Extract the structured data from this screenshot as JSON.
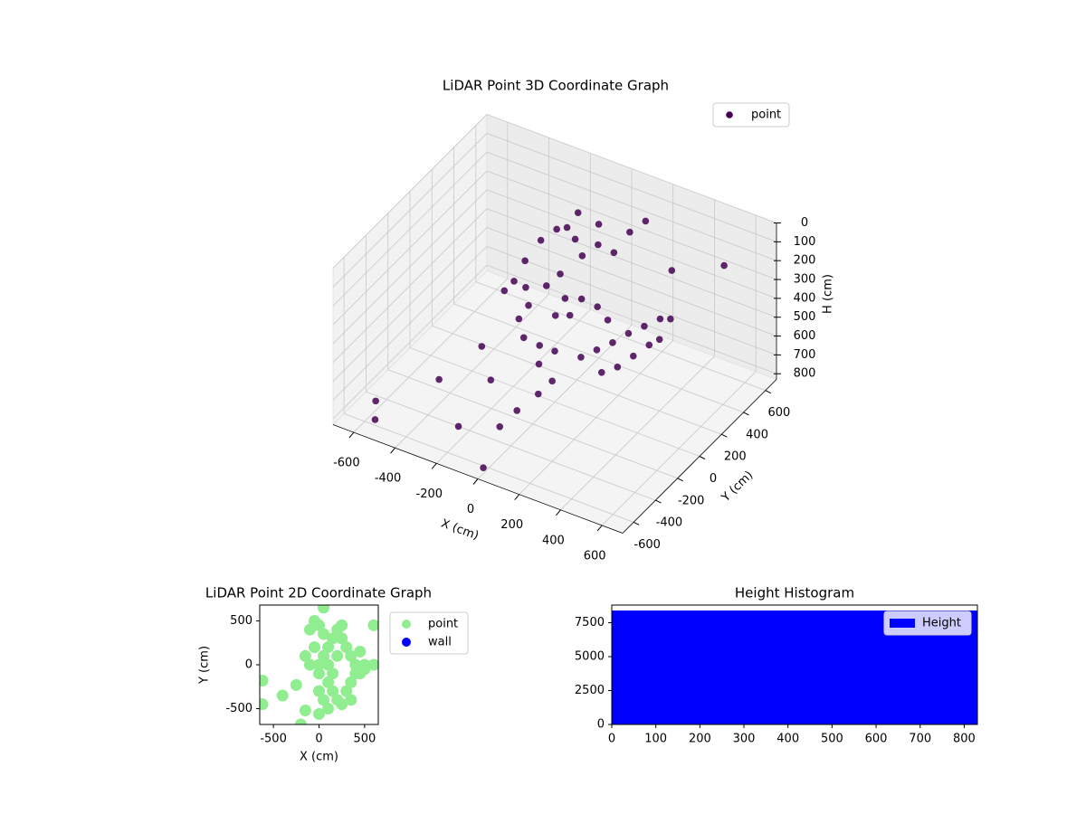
{
  "chart_data": [
    {
      "type": "scatter3d",
      "title": "LiDAR Point 3D Coordinate Graph",
      "xlabel": "X (cm)",
      "ylabel": "Y (cm)",
      "zlabel": "H (cm)",
      "xlim": [
        -700,
        700
      ],
      "ylim": [
        -700,
        700
      ],
      "zlim": [
        0,
        830
      ],
      "z_inverted": true,
      "xticks": [
        -600,
        -400,
        -200,
        0,
        200,
        400,
        600
      ],
      "yticks": [
        -600,
        -400,
        -200,
        0,
        200,
        400,
        600
      ],
      "zticks": [
        0,
        100,
        200,
        300,
        400,
        500,
        600,
        700,
        800
      ],
      "grid": true,
      "legend": "upper right",
      "series": [
        {
          "name": "point",
          "color": "#440154",
          "x": [
            -250,
            -200,
            -150,
            -100,
            -50,
            0,
            50,
            -220,
            -180,
            -120,
            -80,
            -30,
            20,
            -200,
            -150,
            -100,
            -50,
            0,
            100,
            150,
            200,
            250,
            300,
            350,
            400,
            300,
            250,
            200,
            350,
            400,
            150,
            100,
            -100,
            0,
            100,
            150,
            200,
            -250,
            -50,
            50,
            0,
            -50,
            -80,
            30,
            -600,
            -550,
            -400,
            -200,
            0,
            -300,
            500,
            300,
            -350,
            -150
          ],
          "y": [
            200,
            250,
            300,
            300,
            280,
            250,
            300,
            150,
            100,
            150,
            200,
            150,
            100,
            50,
            0,
            50,
            -50,
            0,
            50,
            100,
            150,
            200,
            250,
            300,
            300,
            150,
            100,
            50,
            200,
            200,
            200,
            200,
            400,
            400,
            350,
            400,
            450,
            100,
            100,
            150,
            -150,
            -250,
            -350,
            -80,
            -500,
            -600,
            -300,
            -500,
            -650,
            -100,
            600,
            500,
            200,
            -300
          ],
          "h": [
            300,
            200,
            150,
            120,
            150,
            200,
            150,
            400,
            450,
            350,
            300,
            380,
            420,
            500,
            550,
            600,
            620,
            560,
            580,
            550,
            520,
            480,
            450,
            420,
            400,
            550,
            600,
            620,
            500,
            450,
            450,
            400,
            100,
            120,
            200,
            100,
            50,
            350,
            450,
            350,
            700,
            750,
            790,
            660,
            780,
            800,
            700,
            750,
            800,
            600,
            250,
            300,
            500,
            600
          ]
        }
      ]
    },
    {
      "type": "scatter",
      "title": "LiDAR Point 2D Coordinate Graph",
      "xlabel": "X (cm)",
      "ylabel": "Y (cm)",
      "xlim": [
        -650,
        650
      ],
      "ylim": [
        -680,
        680
      ],
      "xticks": [
        -500,
        0,
        500
      ],
      "yticks": [
        -500,
        0,
        500
      ],
      "legend": "outside right",
      "series": [
        {
          "name": "point",
          "color": "#90ee90",
          "x": [
            0,
            50,
            100,
            150,
            200,
            250,
            300,
            350,
            400,
            450,
            500,
            100,
            150,
            200,
            250,
            300,
            350,
            400,
            450,
            0,
            50,
            100,
            -50,
            -100,
            -50,
            0,
            50,
            100,
            150,
            200,
            250,
            -620,
            -620,
            -400,
            -250,
            -150,
            0,
            600,
            600,
            50,
            -200,
            -150,
            -100,
            0,
            350,
            500
          ],
          "y": [
            0,
            100,
            200,
            300,
            400,
            450,
            200,
            100,
            0,
            -100,
            0,
            -200,
            -300,
            -400,
            -450,
            -300,
            -200,
            -100,
            150,
            -300,
            -400,
            -500,
            200,
            400,
            500,
            450,
            350,
            0,
            -100,
            100,
            300,
            -180,
            -450,
            -350,
            -230,
            -520,
            -560,
            0,
            450,
            650,
            -680,
            100,
            0,
            -100,
            -400,
            -50
          ]
        },
        {
          "name": "wall",
          "color": "#0000ff",
          "x": [],
          "y": []
        }
      ]
    },
    {
      "type": "histogram",
      "title": "Height Histogram",
      "xlim": [
        0,
        830
      ],
      "ylim": [
        0,
        8800
      ],
      "xticks": [
        0,
        100,
        200,
        300,
        400,
        500,
        600,
        700,
        800
      ],
      "yticks": [
        0,
        2500,
        5000,
        7500
      ],
      "legend": "upper right",
      "series": [
        {
          "name": "Height",
          "color": "#0000ff",
          "bins": [
            0,
            830
          ],
          "counts": [
            8400
          ]
        }
      ]
    }
  ]
}
